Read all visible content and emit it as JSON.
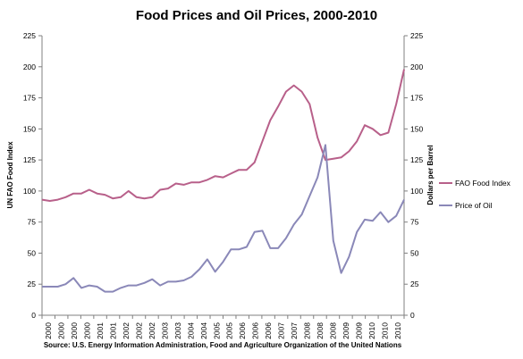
{
  "chart_data": {
    "type": "line",
    "title": "Food Prices and Oil Prices, 2000-2010",
    "ylabel_left": "UN FAO Food Index",
    "ylabel_right": "Dollars per Barrel",
    "source": "Source: U.S. Energy Information Administration, Food and Agriculture Organization of the United Nations",
    "ylim": [
      0,
      225
    ],
    "y_ticks": [
      0,
      25,
      50,
      75,
      100,
      125,
      150,
      175,
      200,
      225
    ],
    "x_tick_labels": [
      "2000",
      "2000",
      "2000",
      "2000",
      "2001",
      "2001",
      "2002",
      "2002",
      "2002",
      "2003",
      "2003",
      "2004",
      "2004",
      "2005",
      "2005",
      "2006",
      "2006",
      "2006",
      "2007",
      "2007",
      "2008",
      "2008",
      "2008",
      "2009",
      "2009",
      "2010",
      "2010",
      "2010"
    ],
    "grid": false,
    "legend_position": "right",
    "series": [
      {
        "name": "FAO Food Index",
        "color": "#b8608a",
        "values": [
          93,
          92,
          93,
          95,
          98,
          98,
          101,
          98,
          97,
          94,
          95,
          100,
          95,
          94,
          95,
          101,
          102,
          106,
          105,
          107,
          107,
          109,
          112,
          111,
          114,
          117,
          117,
          123,
          140,
          157,
          168,
          180,
          185,
          180,
          170,
          143,
          125,
          126,
          127,
          132,
          140,
          153,
          150,
          145,
          147,
          170,
          198
        ]
      },
      {
        "name": "Price of Oil",
        "color": "#8a88b8",
        "values": [
          23,
          23,
          23,
          25,
          30,
          22,
          24,
          23,
          19,
          19,
          22,
          24,
          24,
          26,
          29,
          24,
          27,
          27,
          28,
          31,
          37,
          45,
          35,
          43,
          53,
          53,
          55,
          67,
          68,
          54,
          54,
          62,
          73,
          81,
          96,
          111,
          137,
          60,
          34,
          47,
          67,
          77,
          76,
          83,
          75,
          80,
          93
        ]
      }
    ]
  }
}
